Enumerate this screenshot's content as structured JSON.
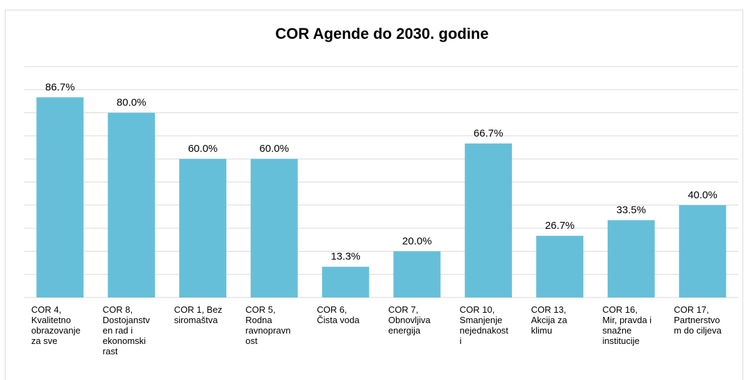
{
  "chart_data": {
    "type": "bar",
    "title": "COR Agende do 2030. godine",
    "categories": [
      "COR 4, Kvalitetno obrazovanje za sve",
      "COR 8, Dostojanstven rad i ekonomski rast",
      "COR 1, Bez siromaštva",
      "COR 5, Rodna ravnopravnost",
      "COR 6, Čista voda",
      "COR 7, Obnovljiva energija",
      "COR 10, Smanjenje nejednakosti",
      "COR 13, Akcija za klimu",
      "COR 16, Mir, pravda i snažne institucije",
      "COR 17, Partnerstvom do ciljeva"
    ],
    "values": [
      86.7,
      80.0,
      60.0,
      60.0,
      13.3,
      20.0,
      66.7,
      26.7,
      33.5,
      40.0
    ],
    "value_labels": [
      "86.7%",
      "80.0%",
      "60.0%",
      "60.0%",
      "13.3%",
      "20.0%",
      "66.7%",
      "26.7%",
      "33.5%",
      "40.0%"
    ],
    "color": "#66bfd9",
    "ylim": [
      0,
      100
    ],
    "yticks": [
      0,
      10,
      20,
      30,
      40,
      50,
      60,
      70,
      80,
      90,
      100
    ],
    "grid": true
  }
}
